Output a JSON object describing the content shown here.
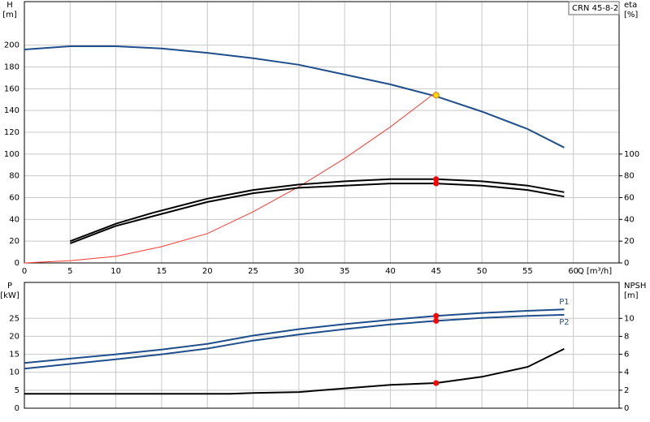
{
  "chart_data": [
    {
      "type": "line",
      "model_label": "CRN 45-8-2",
      "xlabel": "Q [m³/h]",
      "ylabel": [
        "H",
        "[m]"
      ],
      "y2label": [
        "eta",
        "[%]"
      ],
      "xlim": [
        0,
        65
      ],
      "xticks": [
        0,
        5,
        10,
        15,
        20,
        25,
        30,
        35,
        40,
        45,
        50,
        55,
        60
      ],
      "ylim": [
        0,
        240
      ],
      "yticks": [
        0,
        20,
        40,
        60,
        80,
        100,
        120,
        140,
        160,
        180,
        200
      ],
      "y2lim": [
        0,
        240
      ],
      "y2ticks": [
        0,
        20,
        40,
        60,
        80,
        100
      ],
      "grid": true,
      "series": [
        {
          "color": "#1f4e8c",
          "x": [
            0,
            5,
            10,
            15,
            20,
            25,
            30,
            35,
            40,
            45,
            50,
            55,
            59
          ],
          "values": [
            196,
            199,
            199,
            197,
            193,
            188,
            182,
            173,
            164,
            153,
            139,
            123,
            106
          ]
        },
        {
          "color": "#ff3b30",
          "x": [
            0,
            5,
            10,
            15,
            20,
            25,
            30,
            35,
            40,
            45
          ],
          "values": [
            0,
            2,
            6,
            15,
            27,
            47,
            70,
            96,
            125,
            157
          ]
        },
        {
          "color": "#000000",
          "axis": "y2",
          "x": [
            5,
            10,
            14,
            20,
            25,
            30,
            35,
            40,
            45,
            50,
            55,
            59
          ],
          "values": [
            20,
            36,
            46,
            59,
            67,
            72,
            75,
            77,
            77,
            75,
            71,
            65
          ]
        },
        {
          "color": "#000000",
          "axis": "y2",
          "x": [
            5,
            10,
            15,
            20,
            25,
            30,
            35,
            40,
            45,
            50,
            55,
            59
          ],
          "values": [
            18,
            34,
            45,
            56,
            64,
            69,
            71,
            73,
            73,
            71,
            67,
            61
          ]
        }
      ],
      "points": [
        {
          "x": 45,
          "y": 154,
          "color": "#ffd700"
        },
        {
          "x": 45,
          "y": 77,
          "color": "#ff0000",
          "axis": "y2"
        },
        {
          "x": 45,
          "y": 73,
          "color": "#ff0000",
          "axis": "y2"
        }
      ]
    },
    {
      "type": "line",
      "ylabel": [
        "P",
        "[kW]"
      ],
      "y2label": [
        "NPSH",
        "[m]"
      ],
      "xlim": [
        0,
        65
      ],
      "xticks": [
        0,
        5,
        10,
        15,
        20,
        25,
        30,
        35,
        40,
        45,
        50,
        55,
        60
      ],
      "ylim": [
        0,
        35
      ],
      "yticks": [
        0,
        5,
        10,
        15,
        20,
        25
      ],
      "y2lim": [
        0,
        14
      ],
      "y2ticks": [
        0,
        2,
        4,
        6,
        8,
        10
      ],
      "grid": true,
      "series": [
        {
          "name": "P1",
          "color": "#1f4e8c",
          "x": [
            0,
            5,
            10,
            15,
            20,
            25,
            30,
            35,
            40,
            45,
            50,
            55,
            59
          ],
          "values": [
            12.6,
            13.8,
            15,
            16.3,
            17.9,
            20.2,
            22,
            23.4,
            24.6,
            25.7,
            26.5,
            27.1,
            27.5
          ]
        },
        {
          "name": "P2",
          "color": "#1f4e8c",
          "x": [
            0,
            5,
            10,
            15,
            20,
            25,
            30,
            35,
            40,
            45,
            50,
            55,
            59
          ],
          "values": [
            11,
            12.3,
            13.6,
            15,
            16.6,
            18.8,
            20.5,
            22,
            23.3,
            24.3,
            25.1,
            25.7,
            26
          ]
        },
        {
          "color": "#000000",
          "axis": "y2",
          "x": [
            0,
            22.5,
            25,
            30,
            35,
            40,
            45,
            50,
            55,
            59
          ],
          "values": [
            1.6,
            1.6,
            1.7,
            1.8,
            2.2,
            2.6,
            2.8,
            3.5,
            4.6,
            6.6
          ]
        }
      ],
      "points": [
        {
          "x": 45,
          "y": 25.7,
          "color": "#ff0000"
        },
        {
          "x": 45,
          "y": 24.3,
          "color": "#ff0000"
        },
        {
          "x": 45,
          "y": 2.8,
          "color": "#ff0000",
          "axis": "y2"
        }
      ]
    }
  ]
}
